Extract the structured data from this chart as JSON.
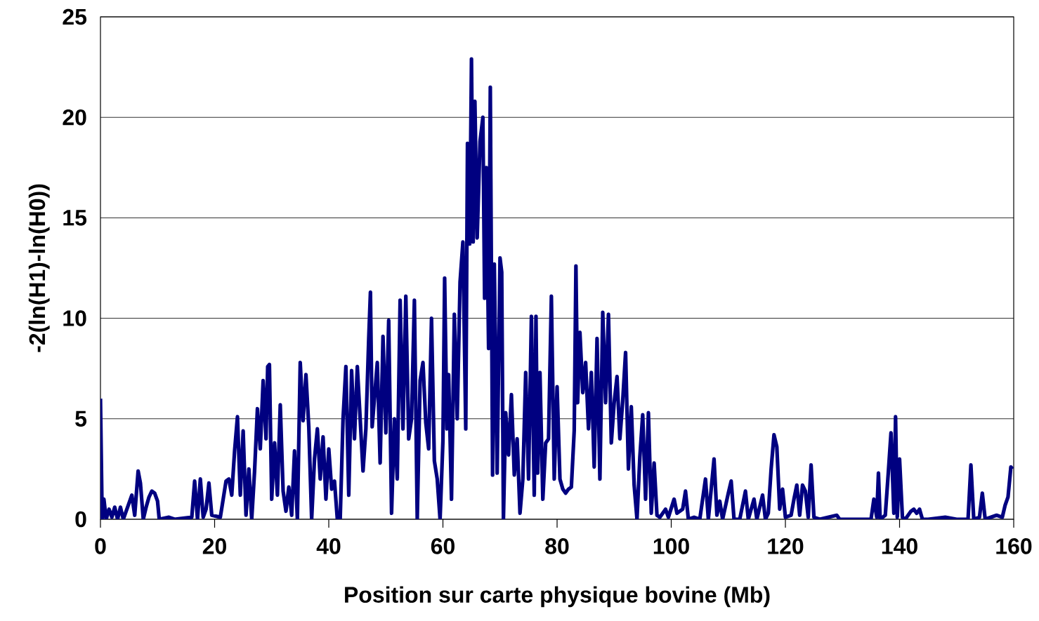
{
  "chart_data": {
    "type": "line",
    "xlabel": "Position sur carte physique bovine (Mb)",
    "ylabel": "-2(ln(H1)-ln(H0))",
    "xlim": [
      0,
      160
    ],
    "ylim": [
      0,
      25
    ],
    "xticks": [
      0,
      20,
      40,
      60,
      80,
      100,
      120,
      140,
      160
    ],
    "yticks": [
      0,
      5,
      10,
      15,
      20,
      25
    ],
    "grid": "y",
    "series": [
      {
        "color": "#000080",
        "x": [
          0,
          0.3,
          0.6,
          1,
          1.5,
          2,
          2.5,
          3,
          3.5,
          4,
          5,
          5.5,
          6,
          6.6,
          7,
          7.5,
          8,
          8.5,
          9,
          9.5,
          10,
          10.3,
          12,
          13,
          16,
          16.5,
          17,
          17.5,
          18,
          18.5,
          19,
          19.5,
          21,
          22,
          22.5,
          23,
          23.5,
          24,
          24.5,
          25,
          25.5,
          26,
          26.5,
          27,
          27.5,
          28,
          28.5,
          29,
          29.3,
          29.6,
          30,
          30.5,
          31,
          31.5,
          32,
          32.5,
          33,
          33.5,
          34,
          34.5,
          35,
          35.5,
          36,
          36.5,
          37,
          37.5,
          38,
          38.5,
          39,
          39.5,
          40,
          40.5,
          41,
          41.5,
          42,
          42.5,
          43,
          43.5,
          44,
          44.5,
          45,
          45.5,
          46,
          46.5,
          47,
          47.3,
          47.6,
          48,
          48.5,
          49,
          49.5,
          50,
          50.5,
          51,
          51.5,
          52,
          52.5,
          53,
          53.5,
          54,
          54.5,
          55,
          55.5,
          56,
          56.5,
          57,
          57.5,
          58,
          58.5,
          59,
          59.5,
          60,
          60.3,
          60.7,
          61,
          61.5,
          62,
          62.5,
          63,
          63.5,
          64,
          64.3,
          64.7,
          65,
          65.3,
          65.6,
          66,
          66.5,
          67,
          67.3,
          67.6,
          68,
          68.3,
          68.7,
          69,
          69.5,
          70,
          70.3,
          70.6,
          71,
          71.5,
          72,
          72.5,
          73,
          73.5,
          74,
          74.5,
          75,
          75.5,
          76,
          76.3,
          76.6,
          77,
          77.5,
          78,
          78.5,
          79,
          79.5,
          80,
          80.5,
          81,
          81.5,
          82,
          82.5,
          83,
          83.3,
          83.6,
          84,
          84.5,
          85,
          85.5,
          86,
          86.5,
          87,
          87.5,
          88,
          88.5,
          89,
          89.5,
          90,
          90.5,
          91,
          91.5,
          92,
          92.5,
          93,
          93.5,
          94,
          94.5,
          95,
          95.5,
          96,
          96.5,
          97,
          97.5,
          98,
          99,
          99.5,
          100.5,
          101,
          102,
          102.5,
          103,
          104,
          105,
          106,
          106.5,
          107.5,
          108,
          108.5,
          109,
          110,
          110.5,
          111,
          112,
          113,
          113.5,
          114.5,
          115,
          116,
          116.5,
          117,
          117.5,
          118,
          118.5,
          119,
          119.5,
          120,
          121,
          121.5,
          122,
          122.5,
          123,
          123.5,
          124,
          124.5,
          125,
          126,
          129,
          129.5,
          132,
          135,
          135.5,
          136,
          136.3,
          136.6,
          137.5,
          138,
          138.5,
          139,
          139.3,
          139.6,
          140,
          140.5,
          141,
          142,
          142.5,
          143,
          143.5,
          144,
          145,
          148,
          150,
          152,
          152.5,
          153,
          154,
          154.5,
          155,
          157,
          158,
          158.5,
          159,
          159.5,
          159.8
        ],
        "values": [
          6.0,
          0.0,
          1.0,
          0,
          0.5,
          0.1,
          0.6,
          0,
          0.6,
          0,
          0.8,
          1.2,
          0.2,
          2.4,
          1.8,
          0,
          0.6,
          1.1,
          1.4,
          1.3,
          0.9,
          0,
          0.1,
          0,
          0.1,
          1.9,
          0,
          2.0,
          0.1,
          0.5,
          1.8,
          0.2,
          0.1,
          1.9,
          2.0,
          1.2,
          3.4,
          5.1,
          1.2,
          4.4,
          0.2,
          2.5,
          0,
          2.4,
          5.5,
          3.5,
          6.9,
          4.0,
          7.6,
          7.7,
          1.0,
          3.8,
          1.2,
          5.7,
          1.4,
          0.4,
          1.6,
          0.2,
          3.4,
          0,
          7.8,
          4.9,
          7.2,
          4.6,
          0,
          3.0,
          4.5,
          2.0,
          4.1,
          1.0,
          3.5,
          1.5,
          1.9,
          0,
          0,
          5.0,
          7.6,
          1.2,
          7.4,
          4.0,
          7.6,
          5.0,
          2.4,
          4.5,
          9.0,
          11.3,
          4.6,
          6.0,
          7.8,
          2.8,
          9.1,
          4.3,
          9.9,
          0.3,
          5.0,
          2.0,
          10.9,
          4.5,
          11.1,
          4.0,
          5.0,
          10.9,
          0.0,
          6.9,
          7.8,
          4.8,
          3.5,
          10.0,
          2.9,
          2.0,
          0.0,
          3.9,
          12.0,
          4.5,
          7.2,
          1.0,
          10.2,
          5.0,
          11.8,
          13.8,
          4.5,
          18.7,
          13.7,
          22.9,
          13.8,
          20.8,
          14.0,
          18.8,
          20.0,
          11.0,
          17.5,
          8.5,
          21.5,
          2.2,
          12.7,
          2.3,
          13.0,
          12.3,
          0.0,
          5.3,
          3.2,
          6.2,
          2.2,
          4.0,
          0.3,
          2.0,
          7.3,
          2.0,
          10.1,
          1.2,
          10.1,
          2.3,
          7.3,
          1.0,
          3.8,
          4.0,
          11.1,
          2.0,
          6.6,
          2.0,
          1.5,
          1.3,
          1.5,
          1.6,
          4.4,
          12.6,
          5.8,
          9.3,
          6.3,
          7.8,
          4.5,
          7.3,
          2.6,
          9.0,
          2.0,
          10.3,
          5.8,
          10.2,
          3.8,
          5.8,
          7.1,
          4.0,
          5.9,
          8.3,
          2.5,
          5.6,
          1.7,
          0,
          3.1,
          5.2,
          1.0,
          5.3,
          0.3,
          2.8,
          0.2,
          0.1,
          0.5,
          0.1,
          1.0,
          0.3,
          0.5,
          1.4,
          0.0,
          0.1,
          0.0,
          2.0,
          0.0,
          3.0,
          0.2,
          0.9,
          0.0,
          1.3,
          1.9,
          0.0,
          0.0,
          1.4,
          0.0,
          1.0,
          0.0,
          1.2,
          0.0,
          0.3,
          2.5,
          4.2,
          3.6,
          0.5,
          1.5,
          0.1,
          0.2,
          1.0,
          1.7,
          0.2,
          1.7,
          1.4,
          0.1,
          2.7,
          0.1,
          0.0,
          0.2,
          0.0,
          0.0,
          0.0,
          1.0,
          0.1,
          2.3,
          0.0,
          0.2,
          2.2,
          4.3,
          0.3,
          5.1,
          0.1,
          3.0,
          0.1,
          0.0,
          0.4,
          0.5,
          0.3,
          0.5,
          0.0,
          0.0,
          0.1,
          0.0,
          0.0,
          2.7,
          0.0,
          0.1,
          1.3,
          0.0,
          0.2,
          0.1,
          0.7,
          1.1,
          2.6,
          2.5
        ]
      }
    ]
  }
}
